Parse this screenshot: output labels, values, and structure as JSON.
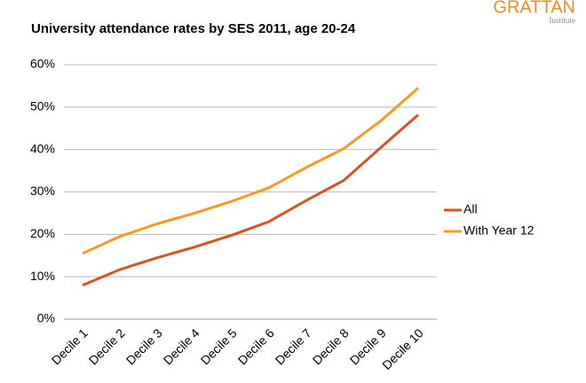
{
  "logo": {
    "name": "GRATTAN",
    "subtitle": "Institute"
  },
  "chart_data": {
    "type": "line",
    "title": "University attendance rates by SES 2011, age 20-24",
    "categories": [
      "Decile 1",
      "Decile 2",
      "Decile 3",
      "Decile 4",
      "Decile 5",
      "Decile 6",
      "Decile 7",
      "Decile 8",
      "Decile 9",
      "Decile 10"
    ],
    "series": [
      {
        "name": "All",
        "color": "#d4541f",
        "values": [
          8,
          11.7,
          14.5,
          17,
          19.8,
          23,
          28,
          32.7,
          40.5,
          48.2
        ]
      },
      {
        "name": "With Year 12",
        "color": "#f59a23",
        "values": [
          15.5,
          19.5,
          22.5,
          25,
          27.8,
          31,
          35.8,
          40.2,
          46.8,
          54.5
        ]
      }
    ],
    "ylim": [
      0,
      60
    ],
    "yticks": [
      {
        "value": 0,
        "label": "0%"
      },
      {
        "value": 10,
        "label": "10%"
      },
      {
        "value": 20,
        "label": "20%"
      },
      {
        "value": 30,
        "label": "30%"
      },
      {
        "value": 40,
        "label": "40%"
      },
      {
        "value": 50,
        "label": "50%"
      },
      {
        "value": 60,
        "label": "60%"
      }
    ],
    "grid": true,
    "legend": "right"
  }
}
